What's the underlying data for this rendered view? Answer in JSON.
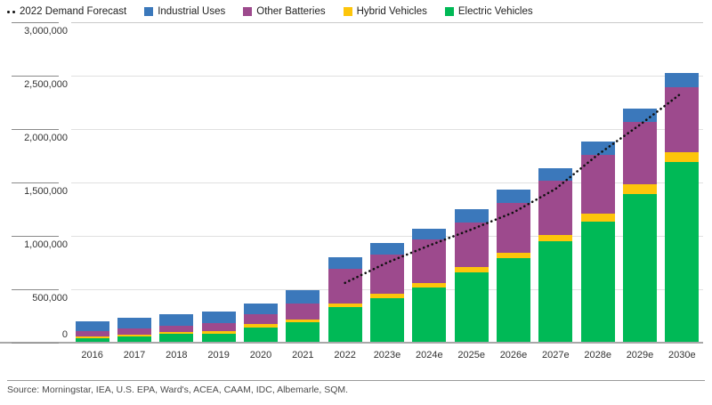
{
  "legend": {
    "forecast_label": "2022 Demand Forecast",
    "items": [
      {
        "label": "Industrial Uses",
        "color": "#3B78BB"
      },
      {
        "label": "Other Batteries",
        "color": "#9D4A8D"
      },
      {
        "label": "Hybrid Vehicles",
        "color": "#FDC50B"
      },
      {
        "label": "Electric Vehicles",
        "color": "#00B956"
      }
    ]
  },
  "source_note": "Source: Morningstar, IEA, U.S. EPA, Ward's, ACEA, CAAM, IDC, Albemarle, SQM.",
  "chart_data": {
    "type": "bar",
    "stacked": true,
    "title": "",
    "xlabel": "",
    "ylabel": "",
    "grid": true,
    "legend_position": "top",
    "ylim": [
      0,
      3000000
    ],
    "yticks": [
      {
        "value": 0,
        "label": "0"
      },
      {
        "value": 500000,
        "label": "500,000"
      },
      {
        "value": 1000000,
        "label": "1,000,000"
      },
      {
        "value": 1500000,
        "label": "1,500,000"
      },
      {
        "value": 2000000,
        "label": "2,000,000"
      },
      {
        "value": 2500000,
        "label": "2,500,000"
      },
      {
        "value": 3000000,
        "label": "3,000,000"
      }
    ],
    "categories": [
      "2016",
      "2017",
      "2018",
      "2019",
      "2020",
      "2021",
      "2022",
      "2023e",
      "2024e",
      "2025e",
      "2026e",
      "2027e",
      "2028e",
      "2029e",
      "2030e"
    ],
    "series": [
      {
        "name": "Electric Vehicles",
        "color": "#00B956",
        "values": [
          45000,
          60000,
          80000,
          80000,
          145000,
          190000,
          335000,
          415000,
          515000,
          660000,
          790000,
          950000,
          1135000,
          1395000,
          1695000
        ]
      },
      {
        "name": "Hybrid Vehicles",
        "color": "#FDC50B",
        "values": [
          10000,
          15000,
          20000,
          25000,
          30000,
          30000,
          35000,
          40000,
          40000,
          45000,
          55000,
          55000,
          70000,
          85000,
          85000
        ]
      },
      {
        "name": "Other Batteries",
        "color": "#9D4A8D",
        "values": [
          50000,
          55000,
          60000,
          80000,
          95000,
          150000,
          320000,
          370000,
          410000,
          420000,
          460000,
          510000,
          555000,
          585000,
          615000
        ]
      },
      {
        "name": "Industrial Uses",
        "color": "#3B78BB",
        "values": [
          95000,
          100000,
          110000,
          110000,
          100000,
          120000,
          110000,
          110000,
          105000,
          125000,
          125000,
          120000,
          125000,
          130000,
          130000
        ]
      }
    ],
    "line_series": {
      "name": "2022 Demand Forecast",
      "style": "dotted",
      "color": "#111111",
      "categories": [
        "2022",
        "2023e",
        "2024e",
        "2025e",
        "2026e",
        "2027e",
        "2028e",
        "2029e",
        "2030e"
      ],
      "values": [
        560000,
        750000,
        910000,
        1060000,
        1220000,
        1440000,
        1760000,
        2040000,
        2340000
      ]
    }
  }
}
